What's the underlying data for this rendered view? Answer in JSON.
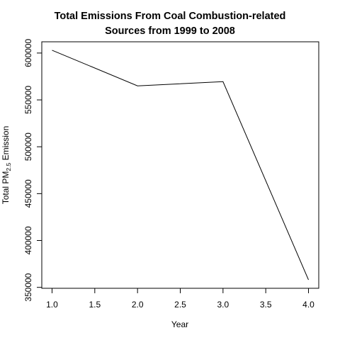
{
  "chart_data": {
    "type": "line",
    "title_lines": [
      "Total Emissions From Coal Combustion-related",
      "Sources from 1999 to 2008"
    ],
    "xlabel": "Year",
    "ylabel": {
      "main": "Total PM",
      "subscript": "2.5",
      "suffix": " Emission"
    },
    "x": [
      1.0,
      2.0,
      3.0,
      4.0
    ],
    "y": [
      603000,
      565000,
      569500,
      358000
    ],
    "xlim": [
      0.88,
      4.12
    ],
    "ylim": [
      349000,
      612000
    ],
    "xticks": [
      1.0,
      1.5,
      2.0,
      2.5,
      3.0,
      3.5,
      4.0
    ],
    "xtick_labels": [
      "1.0",
      "1.5",
      "2.0",
      "2.5",
      "3.0",
      "3.5",
      "4.0"
    ],
    "yticks": [
      350000,
      400000,
      450000,
      500000,
      550000,
      600000
    ],
    "ytick_labels": [
      "350000",
      "400000",
      "450000",
      "500000",
      "550000",
      "600000"
    ],
    "grid": false,
    "line_color": "#000000"
  }
}
